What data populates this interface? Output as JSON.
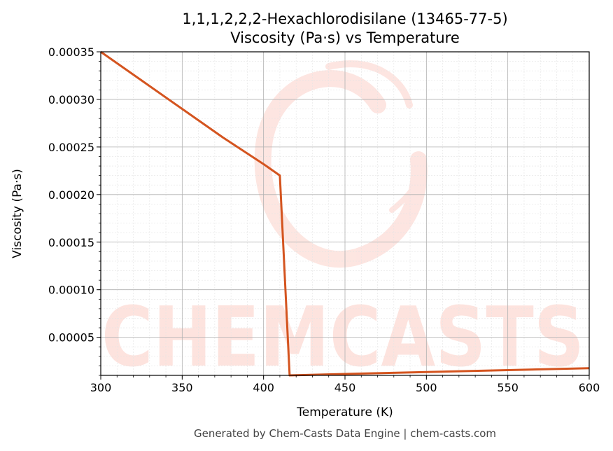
{
  "colors": {
    "series": "#d4541f",
    "grid_major": "#b0b0b0",
    "grid_minor": "#e4e4e4",
    "watermark": "#fde3de",
    "footer": "#444444"
  },
  "watermark": {
    "text": "CHEMCASTS"
  },
  "footer": {
    "text": "Generated by Chem-Casts Data Engine | chem-casts.com"
  },
  "chart_data": {
    "type": "line",
    "title": "1,1,1,2,2,2-Hexachlorodisilane (13465-77-5)",
    "subtitle": "Viscosity (Pa·s) vs Temperature",
    "xlabel": "Temperature (K)",
    "ylabel": "Viscosity (Pa·s)",
    "xlim": [
      300,
      600
    ],
    "ylim": [
      1e-05,
      0.00035
    ],
    "x_ticks": [
      300,
      350,
      400,
      450,
      500,
      550,
      600
    ],
    "x_tick_labels": [
      "300",
      "350",
      "400",
      "450",
      "500",
      "550",
      "600"
    ],
    "y_ticks": [
      5e-05,
      0.0001,
      0.00015,
      0.0002,
      0.00025,
      0.0003,
      0.00035
    ],
    "y_tick_labels": [
      "0.00005",
      "0.00010",
      "0.00015",
      "0.00020",
      "0.00025",
      "0.00030",
      "0.00035"
    ],
    "grid": true,
    "minor_grid": true,
    "series": [
      {
        "color": "#d4541f",
        "x": [
          300,
          325,
          350,
          375,
          400,
          410,
          416,
          450,
          500,
          550,
          600
        ],
        "y": [
          0.00035,
          0.00032,
          0.00029,
          0.00026,
          0.000232,
          0.00022,
          1e-05,
          1.15e-05,
          1.35e-05,
          1.55e-05,
          1.75e-05
        ]
      }
    ]
  }
}
